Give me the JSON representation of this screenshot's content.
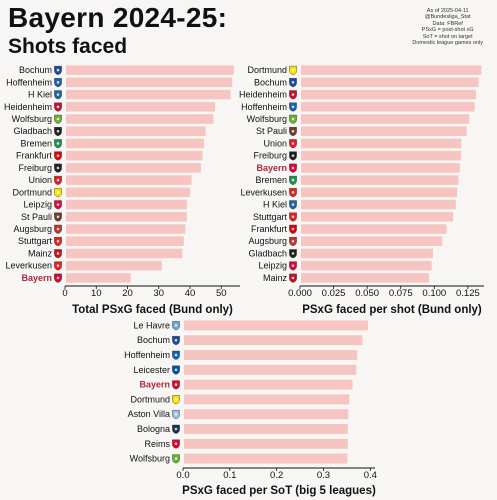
{
  "title": "Bayern 2024-25:",
  "subtitle": "Shots faced",
  "notes": [
    "As of 2025-04-11",
    "@Bundesliga_Stat",
    "Data: FBRef",
    "PSxG = post-shot xG",
    "SoT = shot on target",
    "Domestic league games only"
  ],
  "colors": {
    "bar": "#f6c4c1",
    "highlight_label": "#b0283a",
    "axis": "#111111"
  },
  "chart_data": [
    {
      "type": "bar",
      "orientation": "horizontal",
      "xlabel": "Total PSxG faced (Bund only)",
      "xlim": [
        0,
        56
      ],
      "xticks": [
        0,
        10,
        20,
        30,
        40,
        50
      ],
      "tick_labels": [
        "0",
        "10",
        "20",
        "30",
        "40",
        "50"
      ],
      "highlight": "Bayern",
      "categories": [
        "Bochum",
        "Hoffenheim",
        "H Kiel",
        "Heidenheim",
        "Wolfsburg",
        "Gladbach",
        "Bremen",
        "Frankfurt",
        "Freiburg",
        "Union",
        "Dortmund",
        "Leipzig",
        "St Pauli",
        "Augsburg",
        "Stuttgart",
        "Mainz",
        "Leverkusen",
        "Bayern"
      ],
      "values": [
        54.0,
        53.5,
        53.0,
        48.0,
        47.5,
        45.0,
        44.5,
        44.0,
        43.5,
        40.5,
        40.0,
        39.0,
        39.0,
        38.5,
        38.0,
        37.5,
        31.0,
        21.0
      ]
    },
    {
      "type": "bar",
      "orientation": "horizontal",
      "xlabel": "PSxG faced per shot (Bund only)",
      "xlim": [
        0,
        0.137
      ],
      "xticks": [
        0,
        0.025,
        0.05,
        0.075,
        0.1,
        0.125
      ],
      "tick_labels": [
        "0.000",
        "0.025",
        "0.050",
        "0.075",
        "0.100",
        "0.125"
      ],
      "highlight": "Bayern",
      "categories": [
        "Dortmund",
        "Bochum",
        "Heidenheim",
        "Hoffenheim",
        "Wolfsburg",
        "St Pauli",
        "Union",
        "Freiburg",
        "Bayern",
        "Bremen",
        "Leverkusen",
        "H Kiel",
        "Stuttgart",
        "Frankfurt",
        "Augsburg",
        "Gladbach",
        "Leipzig",
        "Mainz"
      ],
      "values": [
        0.135,
        0.133,
        0.131,
        0.13,
        0.126,
        0.124,
        0.12,
        0.12,
        0.119,
        0.118,
        0.117,
        0.116,
        0.114,
        0.109,
        0.106,
        0.099,
        0.098,
        0.096
      ]
    },
    {
      "type": "bar",
      "orientation": "horizontal",
      "xlabel": "PSxG faced per SoT (big 5 leagues)",
      "xlim": [
        0,
        0.41
      ],
      "xticks": [
        0,
        0.1,
        0.2,
        0.3,
        0.4
      ],
      "tick_labels": [
        "0.0",
        "0.1",
        "0.2",
        "0.3",
        "0.4"
      ],
      "highlight": "Bayern",
      "categories": [
        "Le Havre",
        "Bochum",
        "Hoffenheim",
        "Leicester",
        "Bayern",
        "Dortmund",
        "Aston Villa",
        "Bologna",
        "Reims",
        "Wolfsburg"
      ],
      "values": [
        0.395,
        0.383,
        0.372,
        0.37,
        0.362,
        0.355,
        0.353,
        0.352,
        0.352,
        0.351
      ]
    }
  ],
  "crests": {
    "Bochum": {
      "c": "#1a4b9e",
      "icon": "bochum-crest-icon"
    },
    "Hoffenheim": {
      "c": "#1961b5",
      "icon": "hoffenheim-crest-icon"
    },
    "H Kiel": {
      "c": "#2164a6",
      "icon": "kiel-crest-icon"
    },
    "Heidenheim": {
      "c": "#c8102e",
      "icon": "heidenheim-crest-icon"
    },
    "Wolfsburg": {
      "c": "#65b32e",
      "icon": "wolfsburg-crest-icon"
    },
    "Gladbach": {
      "c": "#222222",
      "icon": "gladbach-crest-icon"
    },
    "Bremen": {
      "c": "#1d9053",
      "icon": "bremen-crest-icon"
    },
    "Frankfurt": {
      "c": "#e1000f",
      "icon": "frankfurt-crest-icon"
    },
    "Freiburg": {
      "c": "#222222",
      "icon": "freiburg-crest-icon"
    },
    "Union": {
      "c": "#eb1923",
      "icon": "union-crest-icon"
    },
    "Dortmund": {
      "c": "#fde100",
      "icon": "dortmund-crest-icon"
    },
    "Leipzig": {
      "c": "#dd0741",
      "icon": "leipzig-crest-icon"
    },
    "St Pauli": {
      "c": "#6d3e2f",
      "icon": "st-pauli-crest-icon"
    },
    "Augsburg": {
      "c": "#ba3733",
      "icon": "augsburg-crest-icon"
    },
    "Stuttgart": {
      "c": "#e32219",
      "icon": "stuttgart-crest-icon"
    },
    "Mainz": {
      "c": "#c3141e",
      "icon": "mainz-crest-icon"
    },
    "Leverkusen": {
      "c": "#e32221",
      "icon": "leverkusen-crest-icon"
    },
    "Bayern": {
      "c": "#dc052d",
      "icon": "bayern-crest-icon"
    },
    "Le Havre": {
      "c": "#6aa6d8",
      "icon": "le-havre-crest-icon"
    },
    "Leicester": {
      "c": "#0053a0",
      "icon": "leicester-crest-icon"
    },
    "Aston Villa": {
      "c": "#95bfe5",
      "icon": "aston-villa-crest-icon"
    },
    "Bologna": {
      "c": "#1a2f48",
      "icon": "bologna-crest-icon"
    },
    "Reims": {
      "c": "#e4002b",
      "icon": "reims-crest-icon"
    }
  }
}
